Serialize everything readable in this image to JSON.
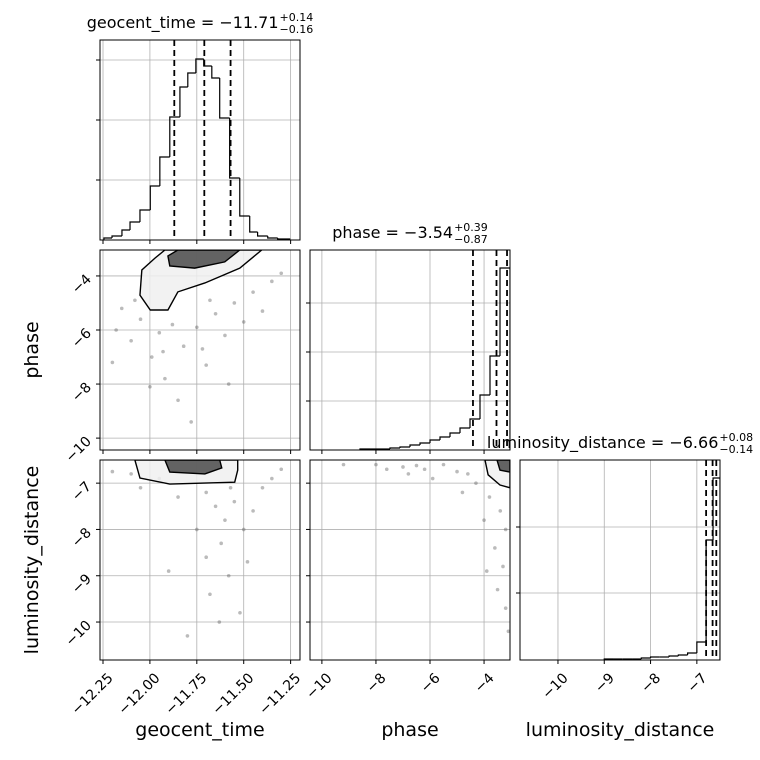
{
  "chart_data": {
    "type": "corner",
    "grid": true,
    "hist_color": "#000000",
    "quantile_color": "#000000",
    "point_color": "#555555",
    "parameters": [
      {
        "label": "geocent_time",
        "title_main": "geocent_time = −11.71",
        "title_sup": "+0.14",
        "title_sub": "−0.16",
        "lim": [
          -12.266,
          -11.2
        ],
        "ticks": [
          {
            "value": -12.25,
            "label": "−12.25"
          },
          {
            "value": -12.0,
            "label": "−12.00"
          },
          {
            "value": -11.75,
            "label": "−11.75"
          },
          {
            "value": -11.5,
            "label": "−11.50"
          },
          {
            "value": -11.25,
            "label": "−11.25"
          }
        ],
        "quantiles": [
          -11.87,
          -11.71,
          -11.57
        ],
        "hist": {
          "bins": [
            -12.245,
            -12.202,
            -12.149,
            -12.106,
            -12.053,
            -11.998,
            -11.947,
            -11.894,
            -11.84,
            -11.798,
            -11.755,
            -11.713,
            -11.67,
            -11.628,
            -11.575,
            -11.521,
            -11.468,
            -11.426,
            -11.372,
            -11.319,
            -11.255
          ],
          "counts": [
            2,
            4,
            10,
            18,
            30,
            54,
            83,
            123,
            153,
            167,
            181,
            174,
            162,
            122,
            62,
            24,
            8,
            4,
            2,
            1
          ],
          "ylim": [
            0,
            200
          ],
          "yticks": [
            60,
            120,
            180
          ]
        }
      },
      {
        "label": "phase",
        "title_main": "phase = −3.54",
        "title_sup": "+0.39",
        "title_sub": "−0.87",
        "lim": [
          -10.44,
          -3.04
        ],
        "ticks": [
          {
            "value": -10,
            "label": "−10"
          },
          {
            "value": -8,
            "label": "−8"
          },
          {
            "value": -6,
            "label": "−6"
          },
          {
            "value": -4,
            "label": "−4"
          }
        ],
        "quantiles": [
          -4.41,
          -3.54,
          -3.15
        ],
        "hist": {
          "bins": [
            -8.59,
            -8.22,
            -7.85,
            -7.48,
            -7.11,
            -6.74,
            -6.37,
            -6.0,
            -5.63,
            -5.26,
            -4.89,
            -4.52,
            -4.15,
            -3.78,
            -3.41,
            -3.04
          ],
          "counts": [
            1,
            1,
            1,
            2,
            3,
            5,
            7,
            10,
            13,
            17,
            22,
            31,
            55,
            94,
            182
          ],
          "ylim": [
            0,
            200
          ],
          "yticks": [
            49,
            98,
            147
          ]
        }
      },
      {
        "label": "luminosity_distance",
        "title_main": "luminosity_distance = −6.66",
        "title_sup": "+0.08",
        "title_sub": "−0.14",
        "lim": [
          -10.82,
          -6.5
        ],
        "ticks": [
          {
            "value": -10,
            "label": "−10"
          },
          {
            "value": -9,
            "label": "−9"
          },
          {
            "value": -8,
            "label": "−8"
          },
          {
            "value": -7,
            "label": "−7"
          }
        ],
        "quantiles": [
          -6.8,
          -6.66,
          -6.58
        ],
        "hist": {
          "bins": [
            -9.0,
            -8.8,
            -8.6,
            -8.4,
            -8.2,
            -8.0,
            -7.8,
            -7.6,
            -7.4,
            -7.2,
            -7.0,
            -6.8,
            -6.65,
            -6.5
          ],
          "counts": [
            1,
            1,
            1,
            1,
            2,
            3,
            3,
            4,
            5,
            7,
            18,
            120,
            182
          ],
          "ylim": [
            0,
            200
          ],
          "yticks": [
            67,
            133
          ]
        }
      }
    ],
    "pairs": [
      [
        {
          "points_x": [
            -12.05,
            -11.95,
            -11.88,
            -12.1,
            -11.99,
            -11.82,
            -11.75,
            -11.65,
            -11.55,
            -11.45,
            -11.35,
            -12.2,
            -12.15,
            -11.92,
            -11.7,
            -11.6,
            -11.5,
            -11.85,
            -12.0,
            -11.78,
            -11.4,
            -11.3,
            -12.08,
            -11.68,
            -11.93,
            -11.58,
            -12.18,
            -11.72
          ],
          "points_y": [
            -5.6,
            -6.1,
            -5.8,
            -6.4,
            -7.0,
            -6.6,
            -5.9,
            -5.4,
            -5.0,
            -4.6,
            -4.2,
            -7.2,
            -5.2,
            -7.8,
            -7.3,
            -6.2,
            -5.7,
            -8.6,
            -8.1,
            -9.4,
            -5.3,
            -3.9,
            -4.9,
            -4.9,
            -6.8,
            -8.0,
            -6.0,
            -6.7
          ],
          "contours": [
            {
              "color": "#f0f0f0",
              "x": [
                -11.404,
                -11.521,
                -11.707,
                -11.851,
                -11.904,
                -11.998,
                -12.053,
                -12.043,
                -11.973,
                -11.92
              ],
              "y": [
                -3.04,
                -3.71,
                -4.26,
                -4.59,
                -5.26,
                -5.26,
                -4.71,
                -3.78,
                -3.34,
                -3.04
              ]
            },
            {
              "color": "#4a4a4a",
              "x": [
                -11.521,
                -11.601,
                -11.761,
                -11.894,
                -11.904,
                -11.851
              ],
              "y": [
                -3.04,
                -3.48,
                -3.71,
                -3.63,
                -3.26,
                -3.04
              ]
            }
          ]
        }
      ],
      [
        {
          "points_x": [
            -12.2,
            -12.1,
            -11.95,
            -11.7,
            -11.65,
            -11.6,
            -11.55,
            -11.5,
            -11.45,
            -11.62,
            -11.7,
            -11.58,
            -11.68,
            -11.52,
            -11.75,
            -11.85,
            -11.4,
            -11.35,
            -11.3,
            -11.8,
            -11.63,
            -11.48,
            -11.9,
            -12.05,
            -11.57
          ],
          "points_y": [
            -6.75,
            -6.8,
            -6.9,
            -7.2,
            -7.5,
            -7.8,
            -7.4,
            -8.0,
            -7.6,
            -8.3,
            -8.6,
            -9.0,
            -9.4,
            -9.8,
            -8.0,
            -7.3,
            -7.1,
            -6.9,
            -6.7,
            -10.3,
            -10.0,
            -8.7,
            -8.9,
            -7.1,
            -7.1
          ],
          "contours": [
            {
              "color": "#f0f0f0",
              "x": [
                -12.08,
                -12.053,
                -11.894,
                -11.548,
                -11.532,
                -11.532
              ],
              "y": [
                -6.5,
                -6.89,
                -7.02,
                -6.98,
                -6.72,
                -6.5
              ]
            },
            {
              "color": "#4a4a4a",
              "x": [
                -11.92,
                -11.894,
                -11.707,
                -11.617,
                -11.628
              ],
              "y": [
                -6.5,
                -6.76,
                -6.8,
                -6.67,
                -6.5
              ]
            }
          ]
        },
        {
          "points_x": [
            -8.0,
            -7.0,
            -6.2,
            -5.5,
            -5.0,
            -4.6,
            -4.3,
            -3.8,
            -3.4,
            -3.2,
            -3.6,
            -3.3,
            -3.5,
            -3.2,
            -4.0,
            -9.2,
            -6.8,
            -5.9,
            -4.8,
            -3.9,
            -3.1,
            -7.6,
            -6.5
          ],
          "points_y": [
            -6.6,
            -6.65,
            -6.7,
            -6.6,
            -6.75,
            -6.8,
            -7.0,
            -7.3,
            -7.6,
            -8.0,
            -8.4,
            -8.8,
            -9.3,
            -9.7,
            -7.8,
            -6.6,
            -6.8,
            -6.9,
            -7.2,
            -8.9,
            -10.2,
            -6.7,
            -6.62
          ],
          "contours": [
            {
              "color": "#f0f0f0",
              "x": [
                -3.965,
                -3.85,
                -3.41,
                -3.04,
                -3.04
              ],
              "y": [
                -6.5,
                -6.82,
                -7.04,
                -7.1,
                -6.5
              ]
            },
            {
              "color": "#4a4a4a",
              "x": [
                -3.52,
                -3.41,
                -3.04,
                -3.04
              ],
              "y": [
                -6.5,
                -6.72,
                -6.76,
                -6.5
              ]
            }
          ]
        }
      ]
    ]
  }
}
